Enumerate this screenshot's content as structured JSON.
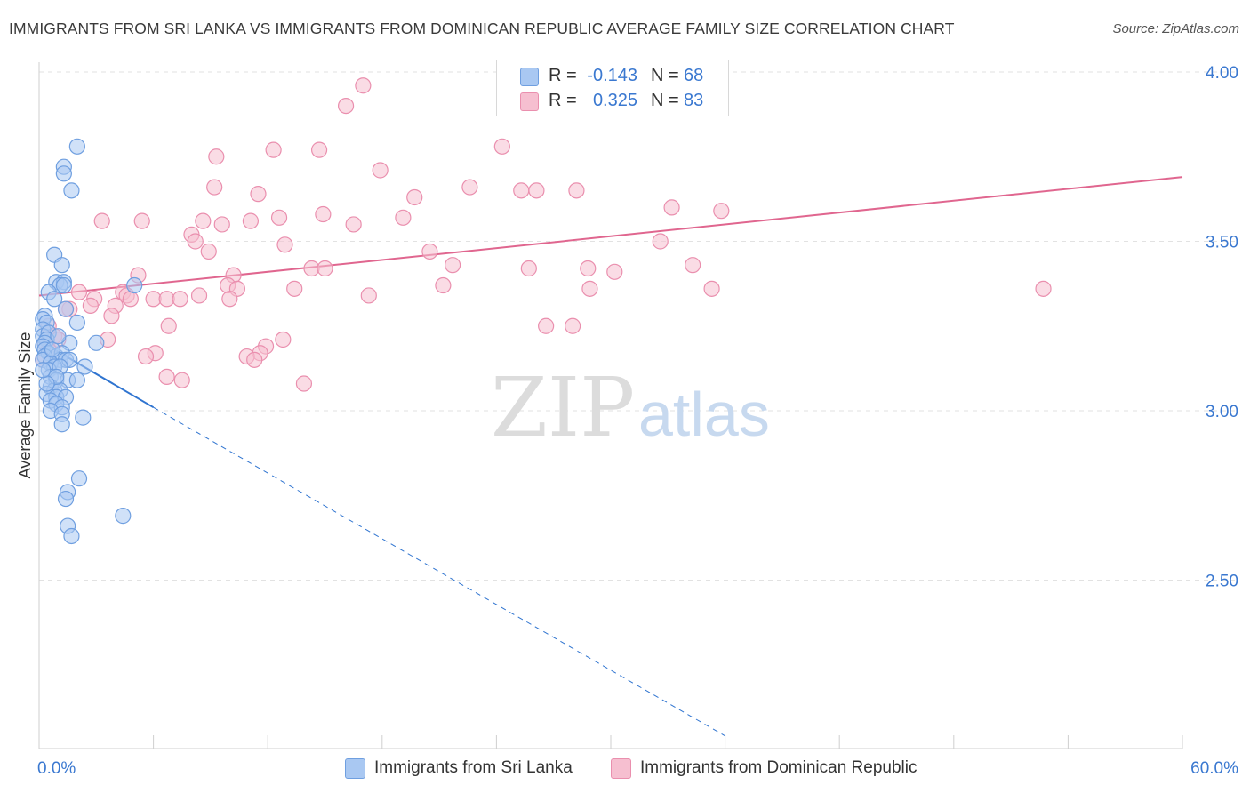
{
  "title": "IMMIGRANTS FROM SRI LANKA VS IMMIGRANTS FROM DOMINICAN REPUBLIC AVERAGE FAMILY SIZE CORRELATION CHART",
  "source": "Source: ZipAtlas.com",
  "watermark": {
    "zip": "ZIP",
    "atlas": "atlas"
  },
  "legend_top": {
    "rows": [
      {
        "r_label": "R =",
        "r_value": "-0.143",
        "n_label": "N =",
        "n_value": "68"
      },
      {
        "r_label": "R =",
        "r_value": "0.325",
        "n_label": "N =",
        "n_value": "83"
      }
    ]
  },
  "legend_bottom": {
    "items": [
      {
        "label": "Immigrants from Sri Lanka"
      },
      {
        "label": "Immigrants from Dominican Republic"
      }
    ]
  },
  "colors": {
    "blue_fill": "#a9c8f2",
    "blue_stroke": "#6f9fe0",
    "blue_line": "#2f74d0",
    "pink_fill": "#f6bfd0",
    "pink_stroke": "#ea8fae",
    "pink_line": "#e0668f",
    "grid": "#e2e2e2",
    "axis_text": "#3a78d0",
    "watermark_zip": "#dcdcdc",
    "watermark_atlas": "#c7d9ef"
  },
  "chart_data": {
    "type": "scatter",
    "title": "IMMIGRANTS FROM SRI LANKA VS IMMIGRANTS FROM DOMINICAN REPUBLIC AVERAGE FAMILY SIZE CORRELATION CHART",
    "xlabel": "",
    "ylabel": "Average Family Size",
    "xlim": [
      0,
      60
    ],
    "ylim": [
      2.0,
      4.1
    ],
    "x_tick_labels": [
      "0.0%",
      "60.0%"
    ],
    "y_ticks": [
      2.5,
      3.0,
      3.5,
      4.0
    ],
    "y_tick_labels": [
      "2.50",
      "3.00",
      "3.50",
      "4.00"
    ],
    "grid": true,
    "legend_position": "top-center and bottom",
    "series": [
      {
        "name": "Immigrants from Sri Lanka",
        "color": "#6f9fe0",
        "trend": {
          "x": [
            0.2,
            6.0
          ],
          "y": [
            3.2,
            3.01
          ],
          "dashed_extension_to": [
            36.0,
            2.04
          ]
        },
        "points": [
          [
            2.0,
            3.78
          ],
          [
            1.3,
            3.72
          ],
          [
            1.3,
            3.7
          ],
          [
            1.7,
            3.65
          ],
          [
            0.8,
            3.46
          ],
          [
            1.2,
            3.43
          ],
          [
            0.9,
            3.38
          ],
          [
            1.3,
            3.38
          ],
          [
            1.1,
            3.37
          ],
          [
            1.3,
            3.37
          ],
          [
            0.5,
            3.35
          ],
          [
            5.0,
            3.37
          ],
          [
            0.8,
            3.33
          ],
          [
            1.4,
            3.3
          ],
          [
            0.3,
            3.28
          ],
          [
            0.2,
            3.27
          ],
          [
            0.4,
            3.26
          ],
          [
            0.2,
            3.24
          ],
          [
            2.0,
            3.26
          ],
          [
            0.2,
            3.22
          ],
          [
            0.5,
            3.23
          ],
          [
            0.4,
            3.21
          ],
          [
            0.3,
            3.2
          ],
          [
            0.2,
            3.19
          ],
          [
            0.3,
            3.18
          ],
          [
            1.6,
            3.2
          ],
          [
            3.0,
            3.2
          ],
          [
            0.5,
            3.17
          ],
          [
            0.9,
            3.16
          ],
          [
            1.2,
            3.17
          ],
          [
            0.3,
            3.16
          ],
          [
            1.1,
            3.15
          ],
          [
            0.2,
            3.15
          ],
          [
            1.4,
            3.15
          ],
          [
            1.6,
            3.15
          ],
          [
            0.6,
            3.14
          ],
          [
            0.8,
            3.13
          ],
          [
            0.5,
            3.12
          ],
          [
            2.4,
            3.13
          ],
          [
            1.1,
            3.13
          ],
          [
            0.6,
            3.1
          ],
          [
            0.9,
            3.09
          ],
          [
            1.5,
            3.09
          ],
          [
            2.0,
            3.09
          ],
          [
            0.6,
            3.07
          ],
          [
            0.8,
            3.06
          ],
          [
            1.1,
            3.06
          ],
          [
            0.4,
            3.05
          ],
          [
            0.9,
            3.04
          ],
          [
            1.4,
            3.04
          ],
          [
            0.6,
            3.03
          ],
          [
            0.9,
            3.02
          ],
          [
            1.2,
            3.01
          ],
          [
            0.6,
            3.0
          ],
          [
            1.2,
            2.99
          ],
          [
            2.3,
            2.98
          ],
          [
            1.2,
            2.96
          ],
          [
            2.1,
            2.8
          ],
          [
            1.5,
            2.76
          ],
          [
            1.4,
            2.74
          ],
          [
            4.4,
            2.69
          ],
          [
            1.5,
            2.66
          ],
          [
            1.7,
            2.63
          ],
          [
            0.9,
            3.1
          ],
          [
            0.4,
            3.08
          ],
          [
            0.2,
            3.12
          ],
          [
            0.7,
            3.18
          ],
          [
            1.0,
            3.22
          ]
        ]
      },
      {
        "name": "Immigrants from Dominican Republic",
        "color": "#ea8fae",
        "trend": {
          "x": [
            0.0,
            60.0
          ],
          "y": [
            3.34,
            3.69
          ]
        },
        "points": [
          [
            17.0,
            3.96
          ],
          [
            16.1,
            3.9
          ],
          [
            12.3,
            3.77
          ],
          [
            14.7,
            3.77
          ],
          [
            24.3,
            3.78
          ],
          [
            9.3,
            3.75
          ],
          [
            17.9,
            3.71
          ],
          [
            9.2,
            3.66
          ],
          [
            11.5,
            3.64
          ],
          [
            19.7,
            3.63
          ],
          [
            22.6,
            3.66
          ],
          [
            25.3,
            3.65
          ],
          [
            26.1,
            3.65
          ],
          [
            28.2,
            3.65
          ],
          [
            33.2,
            3.6
          ],
          [
            35.8,
            3.59
          ],
          [
            3.3,
            3.56
          ],
          [
            5.4,
            3.56
          ],
          [
            8.6,
            3.56
          ],
          [
            9.6,
            3.55
          ],
          [
            11.1,
            3.56
          ],
          [
            12.6,
            3.57
          ],
          [
            14.9,
            3.58
          ],
          [
            16.5,
            3.55
          ],
          [
            19.1,
            3.57
          ],
          [
            8.0,
            3.52
          ],
          [
            8.2,
            3.5
          ],
          [
            12.9,
            3.49
          ],
          [
            32.6,
            3.5
          ],
          [
            20.5,
            3.47
          ],
          [
            8.9,
            3.47
          ],
          [
            21.7,
            3.43
          ],
          [
            25.7,
            3.42
          ],
          [
            28.8,
            3.42
          ],
          [
            30.2,
            3.41
          ],
          [
            34.3,
            3.43
          ],
          [
            14.3,
            3.42
          ],
          [
            15.0,
            3.42
          ],
          [
            10.2,
            3.4
          ],
          [
            5.2,
            3.4
          ],
          [
            9.9,
            3.37
          ],
          [
            10.4,
            3.36
          ],
          [
            13.4,
            3.36
          ],
          [
            17.3,
            3.34
          ],
          [
            21.2,
            3.37
          ],
          [
            28.9,
            3.36
          ],
          [
            35.3,
            3.36
          ],
          [
            52.7,
            3.36
          ],
          [
            2.1,
            3.35
          ],
          [
            4.4,
            3.35
          ],
          [
            8.4,
            3.34
          ],
          [
            2.9,
            3.33
          ],
          [
            4.6,
            3.34
          ],
          [
            4.8,
            3.33
          ],
          [
            6.0,
            3.33
          ],
          [
            6.7,
            3.33
          ],
          [
            7.4,
            3.33
          ],
          [
            10.0,
            3.33
          ],
          [
            1.6,
            3.3
          ],
          [
            2.7,
            3.31
          ],
          [
            4.0,
            3.31
          ],
          [
            1.4,
            3.3
          ],
          [
            3.8,
            3.28
          ],
          [
            6.8,
            3.25
          ],
          [
            26.6,
            3.25
          ],
          [
            28.0,
            3.25
          ],
          [
            0.5,
            3.25
          ],
          [
            0.8,
            3.22
          ],
          [
            1.0,
            3.21
          ],
          [
            3.6,
            3.21
          ],
          [
            12.8,
            3.21
          ],
          [
            0.3,
            3.2
          ],
          [
            0.5,
            3.18
          ],
          [
            11.9,
            3.19
          ],
          [
            11.6,
            3.17
          ],
          [
            6.1,
            3.17
          ],
          [
            5.6,
            3.16
          ],
          [
            10.9,
            3.16
          ],
          [
            11.3,
            3.15
          ],
          [
            6.7,
            3.1
          ],
          [
            7.5,
            3.09
          ],
          [
            13.9,
            3.08
          ],
          [
            0.2,
            3.15
          ]
        ]
      }
    ]
  }
}
